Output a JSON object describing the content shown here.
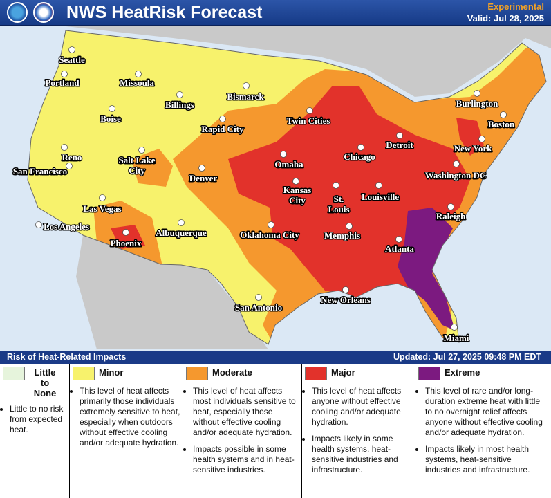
{
  "header": {
    "title": "NWS HeatRisk Forecast",
    "experimental": "Experimental",
    "valid": "Valid: Jul 28, 2025"
  },
  "map": {
    "cities": [
      {
        "label": [
          "Seattle"
        ]
      },
      {
        "label": [
          "Portland"
        ]
      },
      {
        "label": [
          "Missoula"
        ]
      },
      {
        "label": [
          "Boise"
        ]
      },
      {
        "label": [
          "Billings"
        ]
      },
      {
        "label": [
          "Bismarck"
        ]
      },
      {
        "label": [
          "Twin Cities"
        ]
      },
      {
        "label": [
          "Rapid City"
        ]
      },
      {
        "label": [
          "Burlington"
        ]
      },
      {
        "label": [
          "Boston"
        ]
      },
      {
        "label": [
          "Detroit"
        ]
      },
      {
        "label": [
          "New York"
        ]
      },
      {
        "label": [
          "Reno"
        ]
      },
      {
        "label": [
          "San Francisco"
        ]
      },
      {
        "label": [
          "Salt Lake",
          "City"
        ]
      },
      {
        "label": [
          "Omaha"
        ]
      },
      {
        "label": [
          "Chicago"
        ]
      },
      {
        "label": [
          "Washington DC"
        ]
      },
      {
        "label": [
          "Denver"
        ]
      },
      {
        "label": [
          "Kansas",
          "City"
        ]
      },
      {
        "label": [
          "St.",
          "Louis"
        ]
      },
      {
        "label": [
          "Louisville"
        ]
      },
      {
        "label": [
          "Las Vegas"
        ]
      },
      {
        "label": [
          "Raleigh"
        ]
      },
      {
        "label": [
          "Los Angeles"
        ]
      },
      {
        "label": [
          "Phoenix"
        ]
      },
      {
        "label": [
          "Albuquerque"
        ]
      },
      {
        "label": [
          "Oklahoma City"
        ]
      },
      {
        "label": [
          "Memphis"
        ]
      },
      {
        "label": [
          "Atlanta"
        ]
      },
      {
        "label": [
          "San Antonio"
        ]
      },
      {
        "label": [
          "New Orleans"
        ]
      },
      {
        "label": [
          "Miami"
        ]
      }
    ]
  },
  "legend": {
    "title": "Risk of Heat-Related Impacts",
    "updated": "Updated: Jul 27, 2025 09:48 PM EDT",
    "levels": [
      {
        "name": "Little to None",
        "color": "#e6f4dc",
        "bullets": [
          "Little to no risk from expected heat."
        ]
      },
      {
        "name": "Minor",
        "color": "#f7f26c",
        "bullets": [
          "This level of heat affects primarily those individuals extremely sensitive to heat, especially when outdoors without effective cooling and/or adequate hydration."
        ]
      },
      {
        "name": "Moderate",
        "color": "#f5982e",
        "bullets": [
          "This level of heat affects most individuals sensitive to heat, especially those without effective cooling and/or adequate hydration.",
          "Impacts possible in some health systems and in heat-sensitive industries."
        ]
      },
      {
        "name": "Major",
        "color": "#e2322b",
        "bullets": [
          "This level of heat affects anyone without effective cooling and/or adequate hydration.",
          "Impacts likely in some health systems, heat-sensitive industries and infrastructure."
        ]
      },
      {
        "name": "Extreme",
        "color": "#7c1a80",
        "bullets": [
          "This level of rare and/or long-duration extreme heat with little to no overnight relief affects anyone without effective cooling and/or adequate hydration.",
          "Impacts likely in most health systems, heat-sensitive industries and infrastructure."
        ]
      }
    ]
  }
}
